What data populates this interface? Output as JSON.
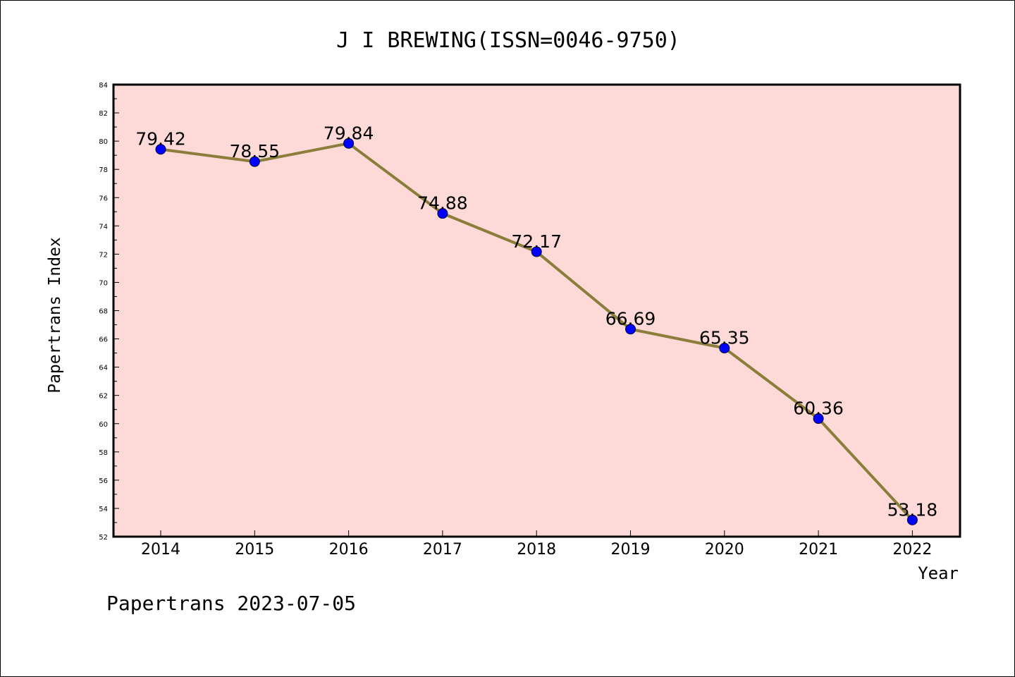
{
  "chart_data": {
    "type": "line",
    "title": "J I BREWING(ISSN=0046-9750)",
    "xlabel": "Year",
    "ylabel": "Papertrans Index",
    "categories": [
      "2014",
      "2015",
      "2016",
      "2017",
      "2018",
      "2019",
      "2020",
      "2021",
      "2022"
    ],
    "series": [
      {
        "values": [
          79.42,
          78.55,
          79.84,
          74.88,
          72.17,
          66.69,
          65.35,
          60.36,
          53.18
        ],
        "labels": [
          "79.42",
          "78.55",
          "79.84",
          "74.88",
          "72.17",
          "66.69",
          "65.35",
          "60.36",
          "53.18"
        ]
      }
    ],
    "ylim": [
      52,
      84
    ],
    "yticks": [
      "52",
      "54",
      "56",
      "58",
      "60",
      "62",
      "64",
      "66",
      "68",
      "70",
      "72",
      "74",
      "76",
      "78",
      "80",
      "82",
      "84"
    ],
    "grid": false,
    "legend": "none",
    "colors": {
      "plot_background": "#fddad7",
      "line": "#8b7d3a",
      "marker": "#0000ff"
    }
  },
  "footer": "Papertrans 2023-07-05"
}
